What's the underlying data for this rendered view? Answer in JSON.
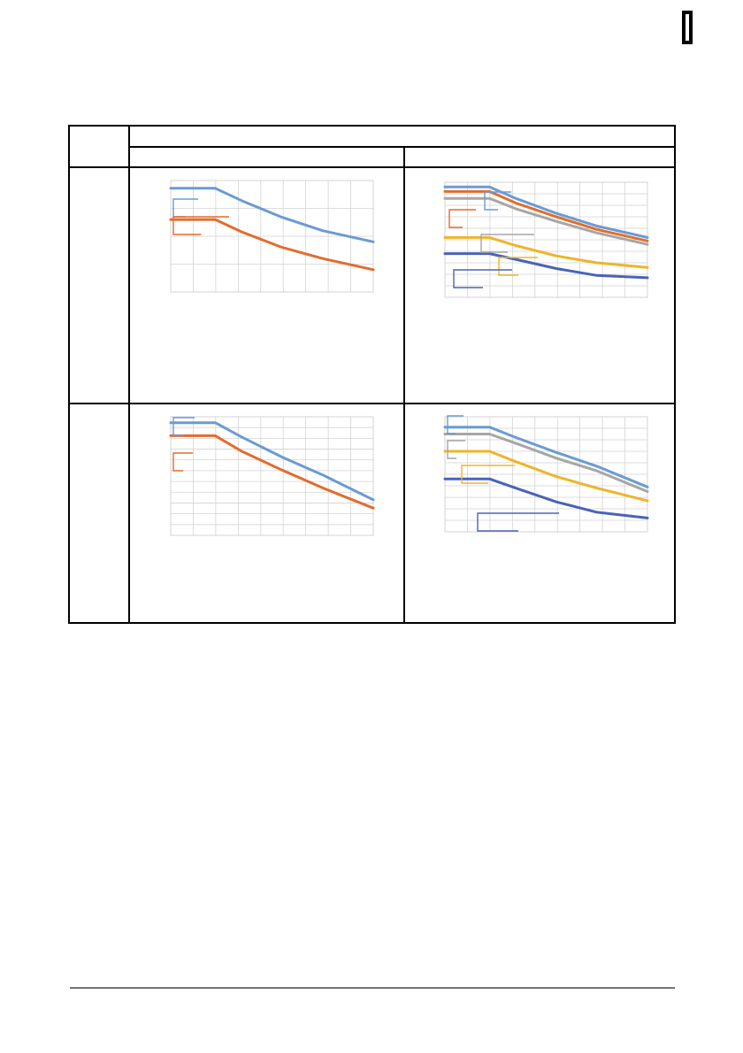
{
  "colors": {
    "series_a": "#6a9bd3",
    "series_b": "#e36c2c",
    "series_c": "#a6a6a6",
    "series_d": "#f0b429",
    "series_e": "#4a63b8",
    "grid": "#d3d3d3",
    "rule": "#000000"
  },
  "chart_data": [
    {
      "type": "line",
      "title": "",
      "xlabel": "",
      "ylabel": "",
      "ylim": [
        0,
        100
      ],
      "grid": true,
      "series": [
        {
          "points": [
            [
              0,
              93
            ],
            [
              22,
              93
            ],
            [
              35,
              82
            ],
            [
              55,
              67
            ],
            [
              75,
              55
            ],
            [
              100,
              45
            ]
          ]
        },
        {
          "points": [
            [
              0,
              65
            ],
            [
              22,
              65
            ],
            [
              35,
              54
            ],
            [
              55,
              40
            ],
            [
              75,
              30
            ],
            [
              100,
              20
            ]
          ]
        }
      ]
    },
    {
      "type": "line",
      "title": "",
      "xlabel": "",
      "ylabel": "",
      "ylim": [
        0,
        100
      ],
      "grid": true,
      "series": [
        {
          "points": [
            [
              0,
              96
            ],
            [
              22,
              96
            ],
            [
              35,
              86
            ],
            [
              55,
              73
            ],
            [
              75,
              62
            ],
            [
              100,
              52
            ]
          ]
        },
        {
          "points": [
            [
              0,
              92
            ],
            [
              22,
              92
            ],
            [
              35,
              82
            ],
            [
              55,
              70
            ],
            [
              75,
              59
            ],
            [
              100,
              49
            ]
          ]
        },
        {
          "points": [
            [
              0,
              86
            ],
            [
              22,
              86
            ],
            [
              35,
              77
            ],
            [
              55,
              66
            ],
            [
              75,
              56
            ],
            [
              100,
              46
            ]
          ]
        },
        {
          "points": [
            [
              0,
              52
            ],
            [
              22,
              52
            ],
            [
              35,
              45
            ],
            [
              55,
              36
            ],
            [
              75,
              30
            ],
            [
              100,
              26
            ]
          ]
        },
        {
          "points": [
            [
              0,
              38
            ],
            [
              22,
              38
            ],
            [
              35,
              33
            ],
            [
              55,
              25
            ],
            [
              75,
              19
            ],
            [
              100,
              17
            ]
          ]
        }
      ]
    },
    {
      "type": "line",
      "title": "",
      "xlabel": "",
      "ylabel": "",
      "ylim": [
        0,
        100
      ],
      "grid": true,
      "series": [
        {
          "points": [
            [
              0,
              95
            ],
            [
              22,
              95
            ],
            [
              35,
              83
            ],
            [
              55,
              66
            ],
            [
              75,
              51
            ],
            [
              100,
              30
            ]
          ]
        },
        {
          "points": [
            [
              0,
              84
            ],
            [
              22,
              84
            ],
            [
              35,
              71
            ],
            [
              55,
              55
            ],
            [
              75,
              40
            ],
            [
              100,
              23
            ]
          ]
        }
      ]
    },
    {
      "type": "line",
      "title": "",
      "xlabel": "",
      "ylabel": "",
      "ylim": [
        0,
        100
      ],
      "grid": true,
      "series": [
        {
          "points": [
            [
              0,
              91
            ],
            [
              22,
              91
            ],
            [
              35,
              82
            ],
            [
              55,
              69
            ],
            [
              75,
              57
            ],
            [
              100,
              39
            ]
          ]
        },
        {
          "points": [
            [
              0,
              85
            ],
            [
              22,
              85
            ],
            [
              35,
              77
            ],
            [
              55,
              64
            ],
            [
              75,
              53
            ],
            [
              100,
              35
            ]
          ]
        },
        {
          "points": [
            [
              0,
              70
            ],
            [
              22,
              70
            ],
            [
              35,
              61
            ],
            [
              55,
              48
            ],
            [
              75,
              38
            ],
            [
              100,
              27
            ]
          ]
        },
        {
          "points": [
            [
              0,
              46
            ],
            [
              22,
              46
            ],
            [
              35,
              38
            ],
            [
              55,
              26
            ],
            [
              75,
              17
            ],
            [
              100,
              12
            ]
          ]
        }
      ]
    }
  ]
}
